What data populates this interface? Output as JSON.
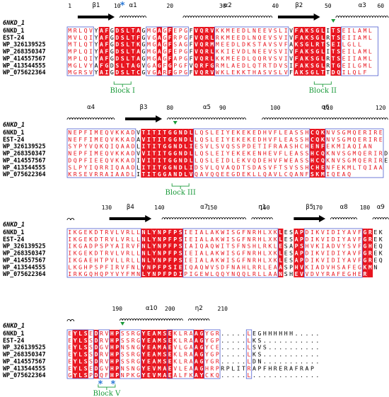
{
  "colors": {
    "identical_bg": "#e8141e",
    "identical_fg": "#ffffff",
    "similar_fg": "#e8141e",
    "box": "#4f5fcf",
    "block": "#1a9a3a",
    "star": "#2a78d6",
    "marker": "#1a9a3a"
  },
  "sequence_names": [
    "EST-24",
    "WP_326139525",
    "WP_268350347",
    "WP_414557567",
    "WP_413544555",
    "WP_075622364"
  ],
  "panels": [
    {
      "structure_label": "6NKD_1",
      "reference_label": "6NKD_1",
      "ruler": [
        {
          "col": 0,
          "label": "1"
        },
        {
          "col": 9,
          "label": "10"
        },
        {
          "col": 19,
          "label": "20"
        },
        {
          "col": 29,
          "label": "30"
        },
        {
          "col": 39,
          "label": "40"
        },
        {
          "col": 49,
          "label": "50"
        },
        {
          "col": 59,
          "label": "60"
        }
      ],
      "ss": [
        {
          "type": "strand",
          "label": "β1",
          "start": 2,
          "end": 8
        },
        {
          "type": "helix",
          "label": "α1",
          "start": 10,
          "end": 14
        },
        {
          "type": "helix",
          "label": "α2",
          "start": 22,
          "end": 38
        },
        {
          "type": "strand",
          "label": "β2",
          "start": 40,
          "end": 47
        },
        {
          "type": "helix",
          "label": "α3",
          "start": 51,
          "end": 60
        }
      ],
      "markers": [
        50
      ],
      "sequences": [
        "MRLQVYAFGDSLTAGMGAGFEPGFVQRVKKMEEDLNEEVSLIVFAKSGLITSEILAML",
        "MVLQIYAFGDSLTFGVGAGFRPGFVQRLRKMEEDLNQEVSVIVFAKSGLRTSEIIAML",
        "MTLQTYAFGDSLTKGMGAGFSAGFVQRMMEEDLDKSTAVSVFAKSGLRTSEILGLL",
        "MPLQIYAFGDSLTAGMGAGFEPGFVQRLKKIEVDLNEEVSVIVFAKSGLITSEILAML",
        "MPLQIYAFGDSLTAGMGAGFAPGFVQRLKKMEEDLQQRVSVIVFAKSGLRTSEIIAML",
        "MGLVYAFGDSLTAGVGAGFGPGFVQRFGRMLAEDLQTRTDVSIFAKSGLRTGEILGML",
        "MGRSVYAIGDSLTCGVGARFGPGFVQRVWKLEKKTHASVSLVFAKSGLTTDQILQLF"
      ],
      "identical_cols": [
        6,
        7,
        9,
        10,
        11,
        12,
        13,
        17,
        19,
        24,
        25,
        26,
        27,
        43,
        44,
        45,
        46,
        47,
        48,
        50,
        51
      ],
      "box_ranges": [
        [
          0,
          4
        ],
        [
          15,
          22
        ],
        [
          28,
          41
        ],
        [
          52,
          58
        ]
      ],
      "annotations": [
        {
          "col": 10,
          "text": "Block I",
          "star": true
        },
        {
          "col": 48,
          "text": "Block II",
          "star": false
        }
      ]
    },
    {
      "structure_label": "6NKD_1",
      "reference_label": "6NKD_1",
      "ruler": [
        {
          "col": 19,
          "label": "80"
        },
        {
          "col": 29,
          "label": "90"
        },
        {
          "col": 39,
          "label": "100"
        },
        {
          "col": 49,
          "label": "110"
        },
        {
          "col": 59,
          "label": "120"
        }
      ],
      "ss": [
        {
          "type": "helix",
          "label": "α4",
          "start": 0,
          "end": 8
        },
        {
          "type": "strand",
          "label": "β3",
          "start": 11,
          "end": 17
        },
        {
          "type": "helix",
          "label": "α5",
          "start": 19,
          "end": 33
        },
        {
          "type": "helix",
          "label": "α6",
          "start": 37,
          "end": 60
        }
      ],
      "markers": [
        20
      ],
      "sequences": [
        "NEPFIMEQVKKADVTITITGGNDLLQSLEIYEKEKEDHVFLEASSHCQKNVSGMQERIRE",
        "NEFFIMEQVKKADAVITITGGNDLLQSLEIYEKEKEDHVFLEASSHCQKNVSGMQERIRE",
        "SYPYVQKQIQAADLITITGGNDLIESVLSVQSSPDETIFRAASHCHENFEKMIAQIAN",
        "NEPFIMEQVKKADVVITITGGNDLLQSLEIYEKEKENHEVFLEASSHCQKNVSGMQERIRD",
        "DQPFIEEQVKKADIVITITGGNDLLQSLEIDLEKVQDEHVFWEASSHCQKNVSGMQERIRE",
        "SLPYIQRRIQAADLITITGGNDLIDSVLQVAQDTSDASVFTSVSSHCHENFEKMLTQIAA",
        "KRSEVRRAIAADLITITGGANDLVQAVQQEEGDEKLLQAVLCQANFSKMIQEAQ"
      ],
      "identical_cols": [
        14,
        15,
        16,
        17,
        18,
        19,
        20,
        21,
        22,
        23,
        46,
        47,
        48
      ],
      "box_ranges": [
        [
          0,
          12
        ],
        [
          24,
          45
        ],
        [
          49,
          59
        ]
      ],
      "annotations": [
        {
          "col": 21,
          "text": "Block III",
          "star": false
        }
      ]
    },
    {
      "structure_label": "6NKD_1",
      "reference_label": "6NKD_1",
      "ruler": [
        {
          "col": 7,
          "label": "130"
        },
        {
          "col": 17,
          "label": "140"
        },
        {
          "col": 27,
          "label": "150"
        },
        {
          "col": 37,
          "label": "160"
        },
        {
          "col": 47,
          "label": "170"
        },
        {
          "col": 56,
          "label": "180"
        }
      ],
      "ss": [
        {
          "type": "tturn",
          "label": "",
          "start": 0,
          "end": 1
        },
        {
          "type": "strand",
          "label": "β4",
          "start": 8,
          "end": 15
        },
        {
          "type": "helix",
          "label": "α7",
          "start": 18,
          "end": 33
        },
        {
          "type": "helix",
          "label": "η1",
          "start": 35,
          "end": 38
        },
        {
          "type": "strand",
          "label": "β5",
          "start": 43,
          "end": 48
        },
        {
          "type": "helix",
          "label": "α8",
          "start": 50,
          "end": 54
        },
        {
          "type": "helix",
          "label": "α9",
          "start": 58,
          "end": 60
        }
      ],
      "markers": [],
      "sequences": [
        "IKGEKDTRVLVRLLNLYNPFPSIEIALAKWISGFNRHLXKLESAPDIKVIDIYAVFGREK",
        "IKGEKDTRVLVRLLNLYNPFPSIEIALAKWISGFNRHLXKLESAPDIKVIDIYAVFGREK",
        "IKGADPSPYAIRVFNLYNPFPSIAIQAQWITSFNSHLRKLESAPSHVKIADVYSVFGHEQ",
        "IKGEKDTRVLVRLLNLYNPFPSIEIALAKWISGFNRHLXKLESAPDIKVIDIYAVFGREK",
        "IKGAEHTPVLLRLLNLYNPFPSIEIALAKWISGFNRHLXKLESAPDIKVIDIYAVFGREQ",
        "LKGHPSPFIRVFNLYNPFPSIEIQAQWVSDFNAHLRRLEAASPHVKIADVHSAFEGKMN",
        "IRKGQHQPYVYFMNLYNPFPDIPIGEWLQQYNQQLRLLAANSHEVVDVYRAFEGHER"
      ],
      "identical_cols": [
        14,
        15,
        16,
        17,
        18,
        19,
        20,
        21,
        40,
        43,
        44,
        56,
        57
      ],
      "box_ranges": [
        [
          0,
          13
        ],
        [
          22,
          39
        ],
        [
          45,
          55
        ]
      ],
      "annotations": []
    },
    {
      "structure_label": "6NKD_1",
      "reference_label": "6NKD_1",
      "ruler": [
        {
          "col": 9,
          "label": "190"
        },
        {
          "col": 19,
          "label": "200"
        },
        {
          "col": 29,
          "label": "210"
        }
      ],
      "ss": [
        {
          "type": "tturn",
          "label": "",
          "start": 0,
          "end": 1
        },
        {
          "type": "helix",
          "label": "α10",
          "start": 10,
          "end": 21
        },
        {
          "type": "helix",
          "label": "η2",
          "start": 23,
          "end": 26
        }
      ],
      "markers": [
        10
      ],
      "sequences": [
        "EYLSEDRVHPSSRGYEAMSEKLRAAGYGR.....LEGHHHHHH.....",
        "EYLSSDRVHPSSRGYEAMSEKLRAAGYGP.....LKS...........",
        "EYLSSDGVHPNSNGYEAMAEVLGAAGYCE.....LSVS..........",
        "EYLSSDRVHPSSRGYEAMSEKLRAAGYGP.....LKS...........",
        "EYLSSDRVHPSSRGYEAMSEKLRAAGYGR.....LDN...........",
        "EYLSEDGVHPNSNGYEVMAEVLEAAGHRPRPLITRAPFHRERAFRAP",
        "GYLSPDQFHPNPKGYEVMAEALFKAYCKQ.....L............."
      ],
      "identical_cols": [
        1,
        2,
        3,
        5,
        8,
        9,
        14,
        15,
        16,
        17,
        18,
        19,
        24,
        25
      ],
      "box_ranges": [
        [
          0,
          4
        ],
        [
          6,
          7
        ],
        [
          10,
          13
        ],
        [
          19,
          23
        ],
        [
          26,
          28
        ],
        [
          34,
          34
        ]
      ],
      "annotations": [
        {
          "col": 7,
          "text": "Block V",
          "star": true,
          "double": true
        }
      ]
    }
  ]
}
